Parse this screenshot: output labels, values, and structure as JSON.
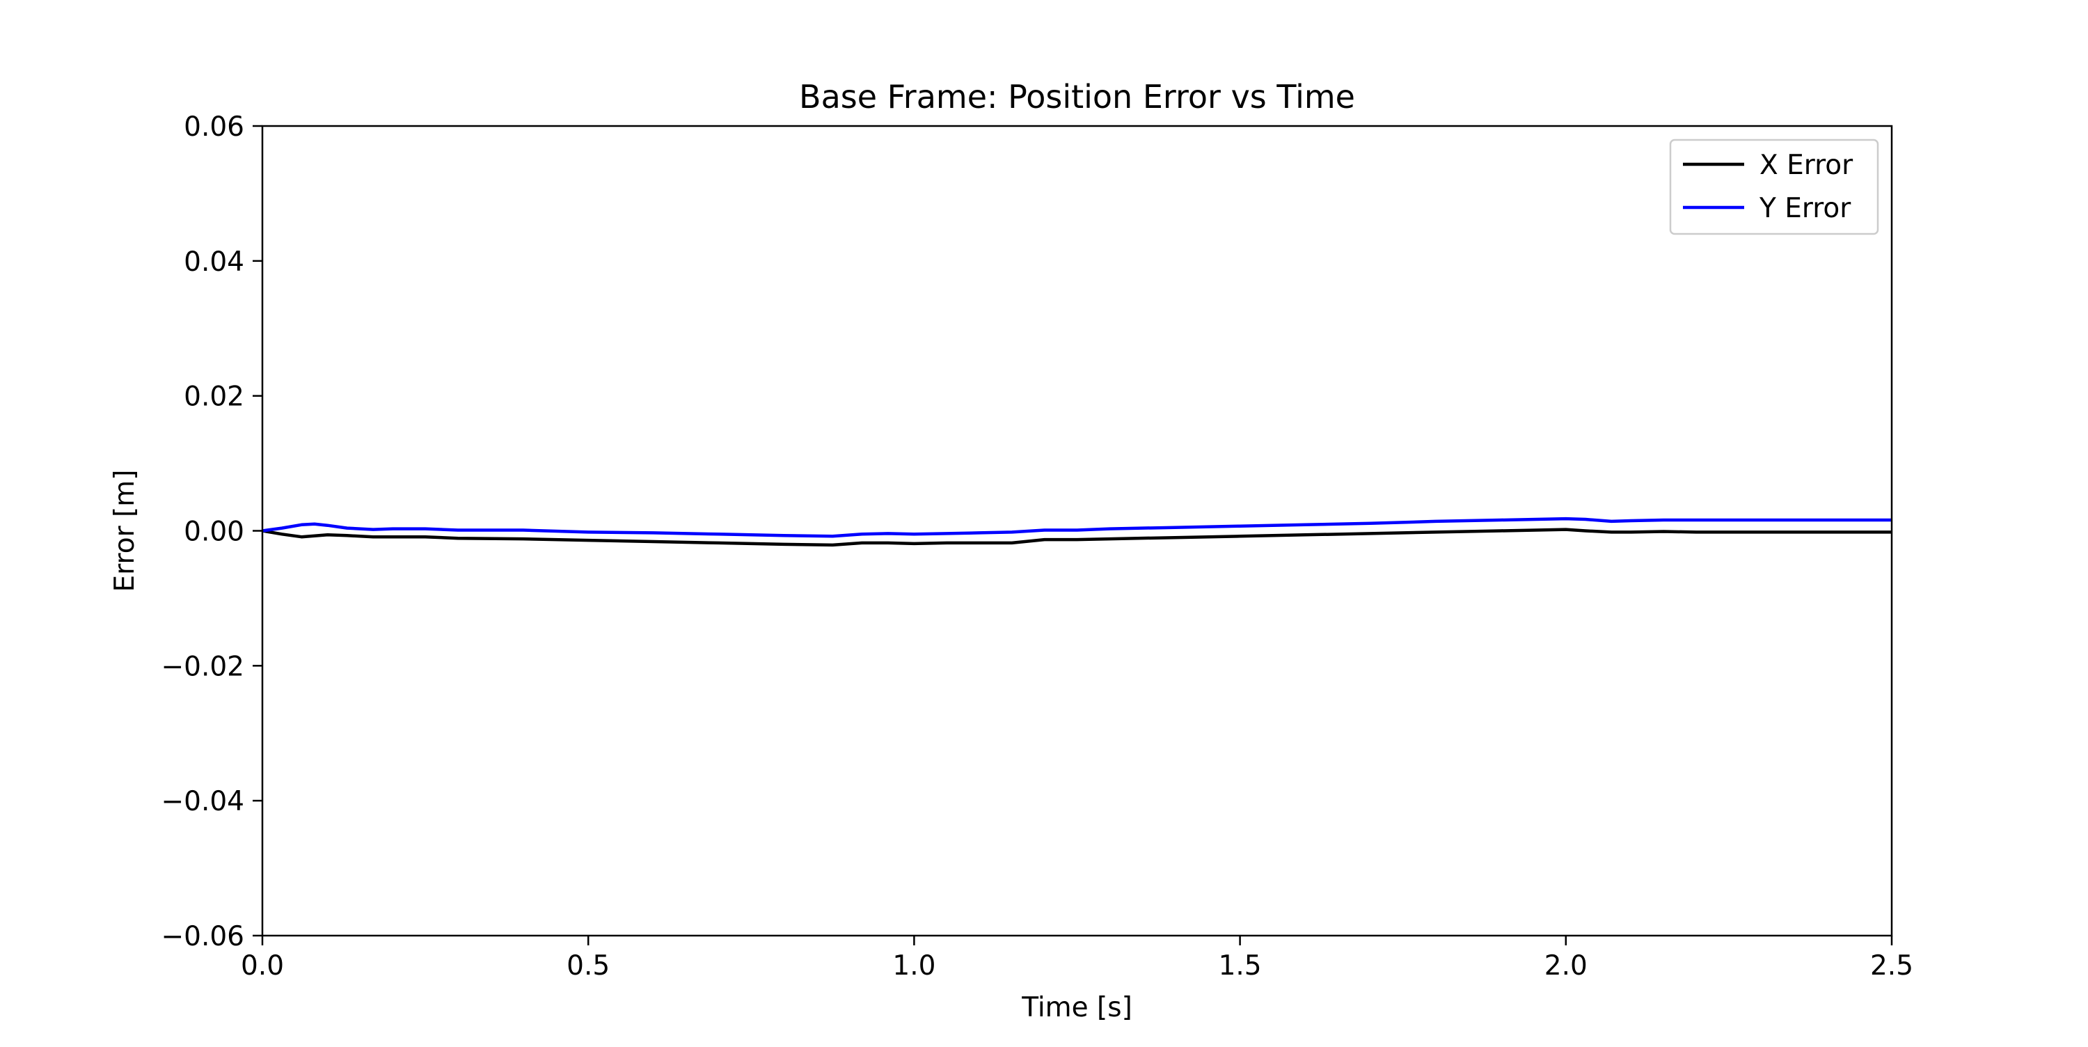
{
  "chart_data": {
    "type": "line",
    "title": "Base Frame: Position Error vs Time",
    "xlabel": "Time [s]",
    "ylabel": "Error [m]",
    "xlim": [
      0.0,
      2.5
    ],
    "ylim": [
      -0.06,
      0.06
    ],
    "xticks": [
      0.0,
      0.5,
      1.0,
      1.5,
      2.0,
      2.5
    ],
    "xtick_labels": [
      "0.0",
      "0.5",
      "1.0",
      "1.5",
      "2.0",
      "2.5"
    ],
    "yticks": [
      -0.06,
      -0.04,
      -0.02,
      0.0,
      0.02,
      0.04,
      0.06
    ],
    "ytick_labels": [
      "−0.06",
      "−0.04",
      "−0.02",
      "0.00",
      "0.02",
      "0.04",
      "0.06"
    ],
    "grid": false,
    "legend_position": "top-right",
    "series": [
      {
        "name": "X Error",
        "color": "#000000",
        "x": [
          0.0,
          0.03,
          0.06,
          0.1,
          0.13,
          0.17,
          0.2,
          0.25,
          0.3,
          0.4,
          0.5,
          0.6,
          0.7,
          0.8,
          0.875,
          0.92,
          0.96,
          1.0,
          1.05,
          1.1,
          1.15,
          1.2,
          1.25,
          1.3,
          1.4,
          1.5,
          1.6,
          1.7,
          1.8,
          1.9,
          2.0,
          2.03,
          2.07,
          2.1,
          2.15,
          2.2,
          2.3,
          2.4,
          2.5
        ],
        "y": [
          0.0,
          -0.0005,
          -0.0009,
          -0.0006,
          -0.0007,
          -0.0009,
          -0.0009,
          -0.0009,
          -0.0011,
          -0.0012,
          -0.0014,
          -0.0016,
          -0.0018,
          -0.002,
          -0.0021,
          -0.0018,
          -0.0018,
          -0.0019,
          -0.0018,
          -0.0018,
          -0.0018,
          -0.0013,
          -0.0013,
          -0.0012,
          -0.001,
          -0.0008,
          -0.0006,
          -0.0004,
          -0.0002,
          0.0,
          0.0002,
          0.0,
          -0.0002,
          -0.0002,
          -0.0001,
          -0.0002,
          -0.0002,
          -0.0002,
          -0.0002
        ]
      },
      {
        "name": "Y Error",
        "color": "#0000ff",
        "x": [
          0.0,
          0.03,
          0.06,
          0.08,
          0.1,
          0.13,
          0.17,
          0.2,
          0.25,
          0.3,
          0.4,
          0.5,
          0.6,
          0.7,
          0.8,
          0.875,
          0.92,
          0.96,
          1.0,
          1.05,
          1.1,
          1.15,
          1.2,
          1.25,
          1.3,
          1.4,
          1.5,
          1.6,
          1.7,
          1.8,
          1.9,
          2.0,
          2.03,
          2.07,
          2.1,
          2.15,
          2.2,
          2.3,
          2.4,
          2.5
        ],
        "y": [
          0.0,
          0.0004,
          0.0009,
          0.001,
          0.0008,
          0.0004,
          0.0002,
          0.0003,
          0.0003,
          0.0001,
          0.0001,
          -0.0002,
          -0.0003,
          -0.0005,
          -0.0007,
          -0.0008,
          -0.0005,
          -0.0004,
          -0.0005,
          -0.0004,
          -0.0003,
          -0.0002,
          0.0001,
          0.0001,
          0.0003,
          0.0005,
          0.0007,
          0.0009,
          0.0011,
          0.0014,
          0.0016,
          0.0018,
          0.0017,
          0.0014,
          0.0015,
          0.0016,
          0.0016,
          0.0016,
          0.0016,
          0.0016
        ]
      }
    ]
  }
}
